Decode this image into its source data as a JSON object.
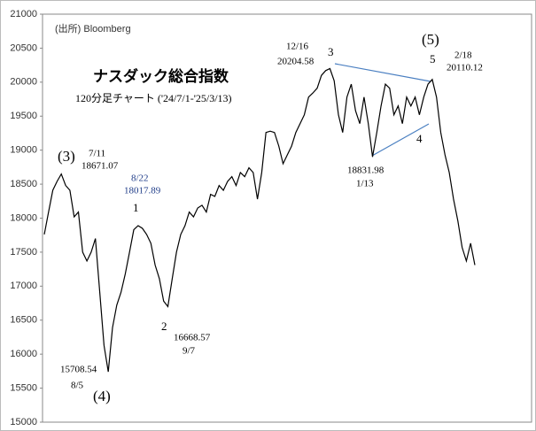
{
  "chart_data": {
    "type": "line",
    "color": "#000000",
    "ylim": [
      15000,
      21000
    ],
    "yticks": [
      15000,
      15500,
      16000,
      16500,
      17000,
      17500,
      18000,
      18500,
      19000,
      19500,
      20000,
      20500,
      21000
    ],
    "values": [
      17760,
      18090,
      18410,
      18540,
      18650,
      18480,
      18410,
      18020,
      18090,
      17500,
      17370,
      17500,
      17700,
      16910,
      16130,
      15740,
      16390,
      16720,
      16910,
      17180,
      17500,
      17830,
      17890,
      17850,
      17760,
      17630,
      17310,
      17110,
      16780,
      16700,
      17110,
      17500,
      17760,
      17890,
      18090,
      18020,
      18150,
      18190,
      18090,
      18350,
      18320,
      18480,
      18410,
      18540,
      18610,
      18480,
      18670,
      18610,
      18740,
      18670,
      18280,
      18670,
      19260,
      19280,
      19260,
      19060,
      18800,
      18930,
      19060,
      19260,
      19390,
      19520,
      19780,
      19840,
      19910,
      20100,
      20170,
      20200,
      20020,
      19520,
      19260,
      19780,
      19970,
      19580,
      19390,
      19780,
      19390,
      18900,
      19260,
      19650,
      19970,
      19910,
      19520,
      19650,
      19390,
      19780,
      19650,
      19780,
      19520,
      19780,
      19970,
      20040,
      19780,
      19260,
      18930,
      18670,
      18280,
      17960,
      17570,
      17370,
      17630,
      17310
    ],
    "annotations": [
      "(出所) Bloomberg",
      "ナスダック総合指数",
      "120分足チャート ('24/7/1-'25/3/13)",
      "(3)",
      "7/11",
      "18671.07",
      "8/22",
      "18017.89",
      "1",
      "15708.54",
      "8/5",
      "(4)",
      "2",
      "16668.57",
      "9/7",
      "12/16",
      "20204.58",
      "3",
      "(5)",
      "5",
      "2/18",
      "20110.12",
      "18831.98",
      "1/13",
      "4"
    ]
  }
}
